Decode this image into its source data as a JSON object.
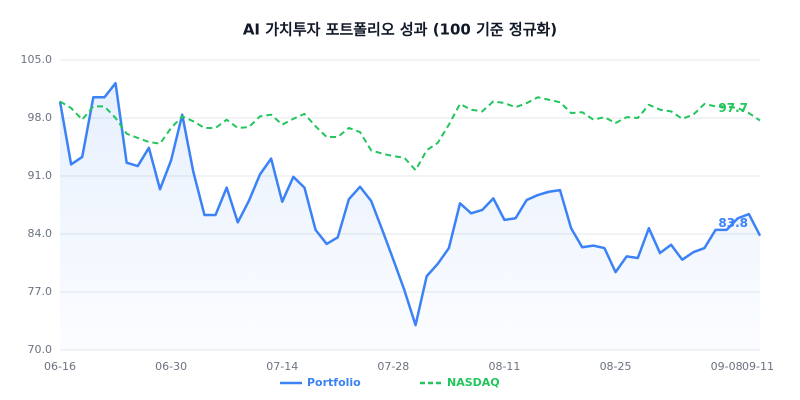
{
  "chart_data": {
    "type": "line",
    "title": "AI 가치투자 포트폴리오 성과 (100 기준 정규화)",
    "categories": [
      "06-16",
      null,
      null,
      null,
      null,
      null,
      null,
      null,
      null,
      null,
      "06-30",
      null,
      null,
      null,
      null,
      null,
      null,
      null,
      null,
      null,
      "07-14",
      null,
      null,
      null,
      null,
      null,
      null,
      null,
      null,
      null,
      "07-28",
      null,
      null,
      null,
      null,
      null,
      null,
      null,
      null,
      null,
      "08-11",
      null,
      null,
      null,
      null,
      null,
      null,
      null,
      null,
      null,
      "08-25",
      null,
      null,
      null,
      null,
      null,
      null,
      null,
      null,
      null,
      "09-08",
      null,
      null,
      "09-11"
    ],
    "series": [
      {
        "name": "Portfolio",
        "color": "#3b82f6",
        "dashed": false,
        "area": true,
        "values": [
          100.0,
          92.4,
          93.3,
          100.5,
          100.5,
          102.2,
          92.6,
          92.2,
          94.4,
          89.4,
          92.9,
          98.4,
          91.5,
          86.3,
          86.3,
          89.6,
          85.4,
          88.0,
          91.2,
          93.1,
          87.9,
          90.9,
          89.6,
          84.5,
          82.8,
          83.6,
          88.2,
          89.7,
          88.0,
          84.5,
          80.9,
          77.2,
          73.0,
          78.9,
          80.4,
          82.3,
          87.7,
          86.5,
          86.9,
          88.3,
          85.7,
          85.9,
          88.1,
          88.7,
          89.1,
          89.3,
          84.7,
          82.4,
          82.6,
          82.3,
          79.4,
          81.3,
          81.1,
          84.7,
          81.7,
          82.7,
          80.9,
          81.8,
          82.3,
          84.5,
          84.5,
          85.9,
          86.4,
          83.8
        ],
        "value_labels": [
          null,
          null,
          null,
          null,
          null,
          null,
          null,
          null,
          null,
          null,
          null,
          null,
          null,
          null,
          null,
          null,
          null,
          null,
          null,
          null,
          null,
          null,
          null,
          null,
          null,
          null,
          null,
          null,
          null,
          null,
          null,
          null,
          null,
          null,
          null,
          null,
          null,
          null,
          null,
          null,
          null,
          null,
          null,
          null,
          null,
          null,
          null,
          null,
          null,
          null,
          null,
          null,
          null,
          null,
          null,
          null,
          null,
          null,
          null,
          null,
          null,
          null,
          null,
          "83.8"
        ]
      },
      {
        "name": "NASDAQ",
        "color": "#22c55e",
        "dashed": true,
        "area": false,
        "values": [
          100.0,
          99.2,
          97.8,
          99.4,
          99.4,
          98.0,
          96.1,
          95.6,
          95.1,
          94.9,
          96.8,
          98.2,
          97.6,
          96.8,
          96.8,
          97.8,
          96.8,
          96.9,
          98.2,
          98.4,
          97.2,
          97.9,
          98.5,
          97.0,
          95.7,
          95.7,
          96.8,
          96.3,
          94.1,
          93.7,
          93.4,
          93.2,
          91.7,
          94.1,
          95.0,
          97.2,
          99.7,
          99.0,
          98.8,
          100.0,
          99.8,
          99.3,
          99.8,
          100.5,
          100.2,
          99.9,
          98.6,
          98.7,
          97.8,
          98.1,
          97.4,
          98.1,
          98.0,
          99.6,
          99.0,
          98.8,
          97.9,
          98.4,
          99.7,
          99.4,
          99.4,
          99.2,
          98.6,
          97.7
        ],
        "value_labels": [
          null,
          null,
          null,
          null,
          null,
          null,
          null,
          null,
          null,
          null,
          null,
          null,
          null,
          null,
          null,
          null,
          null,
          null,
          null,
          null,
          null,
          null,
          null,
          null,
          null,
          null,
          null,
          null,
          null,
          null,
          null,
          null,
          null,
          null,
          null,
          null,
          null,
          null,
          null,
          null,
          null,
          null,
          null,
          null,
          null,
          null,
          null,
          null,
          null,
          null,
          null,
          null,
          null,
          null,
          null,
          null,
          null,
          null,
          null,
          null,
          null,
          null,
          null,
          "97.7"
        ]
      }
    ],
    "ylim": [
      70,
      105
    ],
    "yticks": [
      {
        "value": 70,
        "label": "70.0"
      },
      {
        "value": 77,
        "label": "77.0"
      },
      {
        "value": 84,
        "label": "84.0"
      },
      {
        "value": 91,
        "label": "91.0"
      },
      {
        "value": 98,
        "label": "98.0"
      },
      {
        "value": 105,
        "label": "105.0"
      }
    ],
    "grid": true,
    "legend": "bottom"
  }
}
